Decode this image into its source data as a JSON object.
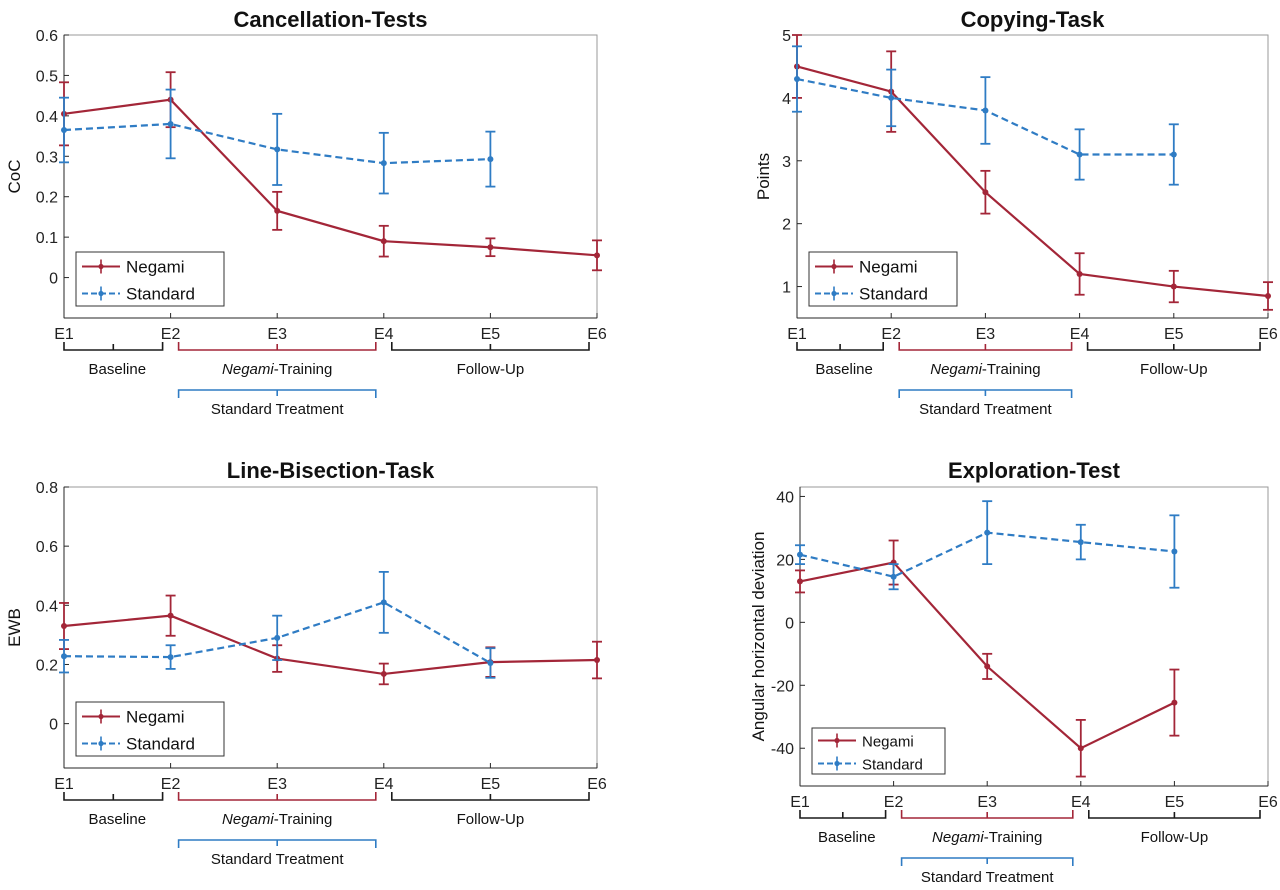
{
  "colors": {
    "negami": "#a32638",
    "standard": "#2f7cc4",
    "axis": "#262626",
    "bracket_black": "#1a1a1a"
  },
  "chart_data": [
    {
      "type": "line",
      "title": "Cancellation-Tests",
      "xlabel": "",
      "ylabel": "CoC",
      "categories": [
        "E1",
        "E2",
        "E3",
        "E4",
        "E5",
        "E6"
      ],
      "ylim": [
        -0.1,
        0.6
      ],
      "yticks": [
        "0",
        "0.1",
        "0.2",
        "0.3",
        "0.4",
        "0.5",
        "0.6"
      ],
      "ytick_values": [
        0,
        0.1,
        0.2,
        0.3,
        0.4,
        0.5,
        0.6
      ],
      "legend": {
        "position": "bottom-left",
        "entries": [
          "Negami",
          "Standard"
        ]
      },
      "series": [
        {
          "name": "Negami",
          "style": "solid",
          "values": [
            0.405,
            0.44,
            0.165,
            0.09,
            0.075,
            0.055
          ],
          "err": [
            0.078,
            0.068,
            0.047,
            0.038,
            0.022,
            0.037
          ]
        },
        {
          "name": "Standard",
          "style": "dashed",
          "values": [
            0.365,
            0.38,
            0.317,
            0.283,
            0.293,
            null
          ],
          "err": [
            0.08,
            0.085,
            0.088,
            0.075,
            0.068,
            null
          ]
        }
      ],
      "phases": {
        "baseline": "Baseline",
        "training_em": "Negami",
        "training_rest": "-Training",
        "followup": "Follow-Up",
        "standard": "Standard Treatment"
      }
    },
    {
      "type": "line",
      "title": "Copying-Task",
      "xlabel": "",
      "ylabel": "Points",
      "categories": [
        "E1",
        "E2",
        "E3",
        "E4",
        "E5",
        "E6"
      ],
      "ylim": [
        0.5,
        5
      ],
      "yticks": [
        "1",
        "2",
        "3",
        "4",
        "5"
      ],
      "ytick_values": [
        1,
        2,
        3,
        4,
        5
      ],
      "legend": {
        "position": "bottom-left",
        "entries": [
          "Negami",
          "Standard"
        ]
      },
      "series": [
        {
          "name": "Negami",
          "style": "solid",
          "values": [
            4.5,
            4.1,
            2.5,
            1.2,
            1.0,
            0.85
          ],
          "err": [
            0.5,
            0.64,
            0.34,
            0.33,
            0.25,
            0.22
          ]
        },
        {
          "name": "Standard",
          "style": "dashed",
          "values": [
            4.3,
            4.0,
            3.8,
            3.1,
            3.1,
            null
          ],
          "err": [
            0.52,
            0.45,
            0.53,
            0.4,
            0.48,
            null
          ]
        }
      ],
      "phases": {
        "baseline": "Baseline",
        "training_em": "Negami",
        "training_rest": "-Training",
        "followup": "Follow-Up",
        "standard": "Standard Treatment"
      }
    },
    {
      "type": "line",
      "title": "Line-Bisection-Task",
      "xlabel": "",
      "ylabel": "EWB",
      "categories": [
        "E1",
        "E2",
        "E3",
        "E4",
        "E5",
        "E6"
      ],
      "ylim": [
        -0.15,
        0.8
      ],
      "yticks": [
        "0",
        "0.2",
        "0.4",
        "0.6",
        "0.8"
      ],
      "ytick_values": [
        0,
        0.2,
        0.4,
        0.6,
        0.8
      ],
      "legend": {
        "position": "bottom-left",
        "entries": [
          "Negami",
          "Standard"
        ]
      },
      "series": [
        {
          "name": "Negami",
          "style": "solid",
          "values": [
            0.33,
            0.365,
            0.22,
            0.168,
            0.208,
            0.215
          ],
          "err": [
            0.078,
            0.068,
            0.045,
            0.035,
            0.05,
            0.062
          ]
        },
        {
          "name": "Standard",
          "style": "dashed",
          "values": [
            0.228,
            0.225,
            0.29,
            0.41,
            0.205,
            null
          ],
          "err": [
            0.055,
            0.04,
            0.075,
            0.103,
            0.05,
            null
          ]
        }
      ],
      "phases": {
        "baseline": "Baseline",
        "training_em": "Negami",
        "training_rest": "-Training",
        "followup": "Follow-Up",
        "standard": "Standard Treatment"
      }
    },
    {
      "type": "line",
      "title": "Exploration-Test",
      "xlabel": "",
      "ylabel": "Angular horizontal deviation",
      "categories": [
        "E1",
        "E2",
        "E3",
        "E4",
        "E5",
        "E6"
      ],
      "ylim": [
        -52,
        43
      ],
      "yticks": [
        "-40",
        "-20",
        "0",
        "20",
        "40"
      ],
      "ytick_values": [
        -40,
        -20,
        0,
        20,
        40
      ],
      "legend": {
        "position": "bottom-left",
        "entries": [
          "Negami",
          "Standard"
        ]
      },
      "series": [
        {
          "name": "Negami",
          "style": "solid",
          "values": [
            13,
            19,
            -14,
            -40,
            -25.5,
            null
          ],
          "err": [
            3.5,
            7,
            4,
            9,
            10.5,
            null
          ]
        },
        {
          "name": "Standard",
          "style": "dashed",
          "values": [
            21.5,
            14.5,
            28.5,
            25.5,
            22.5,
            null
          ],
          "err": [
            3,
            4,
            10,
            5.5,
            11.5,
            null
          ]
        }
      ],
      "phases": {
        "baseline": "Baseline",
        "training_em": "Negami",
        "training_rest": "-Training",
        "followup": "Follow-Up",
        "standard": "Standard Treatment"
      }
    }
  ]
}
